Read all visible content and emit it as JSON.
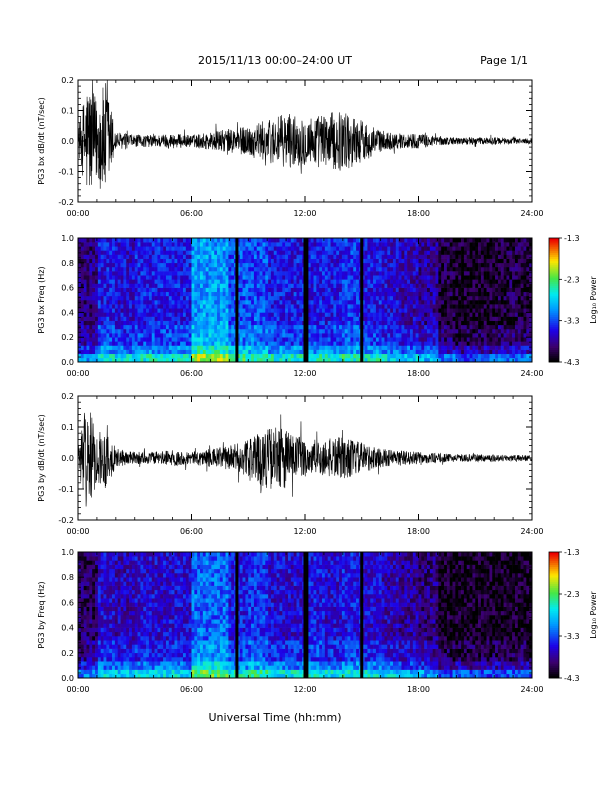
{
  "header": {
    "title": "2015/11/13  00:00–24:00 UT",
    "page": "Page 1/1"
  },
  "footer": {
    "xlabel": "Universal Time (hh:mm)"
  },
  "colorbar": {
    "label": "Log₁₀ Power",
    "ticks": [
      "-1.3",
      "-2.3",
      "-3.3",
      "-4.3"
    ]
  },
  "chart_data": [
    {
      "type": "line",
      "ylabel": "PG3 bx dB/dt (nT/sec)",
      "xlim": [
        0,
        24
      ],
      "ylim": [
        -0.2,
        0.2
      ],
      "x_ticks": [
        "00:00",
        "06:00",
        "12:00",
        "18:00",
        "24:00"
      ],
      "y_ticks": [
        "-0.2",
        "-0.1",
        "0.0",
        "0.1",
        "0.2"
      ],
      "envelope_hours": [
        0,
        0.5,
        1,
        1.5,
        2,
        3,
        4,
        5,
        6,
        7,
        8,
        9,
        10,
        11,
        12,
        13,
        14,
        15,
        16,
        17,
        18,
        19,
        20,
        21,
        22,
        23,
        24
      ],
      "envelope_amplitude": [
        0.04,
        0.2,
        0.14,
        0.2,
        0.03,
        0.02,
        0.02,
        0.025,
        0.02,
        0.03,
        0.04,
        0.05,
        0.07,
        0.09,
        0.08,
        0.09,
        0.1,
        0.07,
        0.035,
        0.025,
        0.025,
        0.015,
        0.012,
        0.012,
        0.012,
        0.01,
        0.01
      ]
    },
    {
      "type": "heatmap",
      "ylabel": "PG3 bx Freq (Hz)",
      "xlim": [
        0,
        24
      ],
      "ylim": [
        0,
        1.0
      ],
      "zlim": [
        -4.3,
        -1.3
      ],
      "x_ticks": [
        "00:00",
        "06:00",
        "12:00",
        "18:00",
        "24:00"
      ],
      "y_ticks": [
        "0.0",
        "0.2",
        "0.4",
        "0.6",
        "0.8",
        "1.0"
      ],
      "data_gaps_hours": [
        8.4,
        12.0,
        12.1,
        15.0
      ],
      "hour_bins": [
        0,
        1,
        2,
        3,
        4,
        5,
        6,
        7,
        8,
        9,
        10,
        11,
        12,
        13,
        14,
        15,
        16,
        17,
        18,
        19,
        20,
        21,
        22,
        23
      ],
      "background_log_power": [
        -3.9,
        -3.5,
        -3.6,
        -3.5,
        -3.5,
        -3.5,
        -3.0,
        -3.0,
        -3.3,
        -3.3,
        -3.5,
        -3.5,
        -3.5,
        -3.5,
        -3.4,
        -3.5,
        -3.6,
        -3.7,
        -3.8,
        -4.1,
        -4.2,
        -4.2,
        -4.1,
        -4.1
      ]
    },
    {
      "type": "line",
      "ylabel": "PG3 by dB/dt (nT/sec)",
      "xlim": [
        0,
        24
      ],
      "ylim": [
        -0.2,
        0.2
      ],
      "x_ticks": [
        "00:00",
        "06:00",
        "12:00",
        "18:00",
        "24:00"
      ],
      "y_ticks": [
        "-0.2",
        "-0.1",
        "0.0",
        "0.1",
        "0.2"
      ],
      "envelope_hours": [
        0,
        0.5,
        1,
        1.5,
        2,
        3,
        4,
        5,
        6,
        7,
        8,
        9,
        10,
        11,
        12,
        13,
        14,
        15,
        16,
        17,
        18,
        19,
        20,
        21,
        22,
        23,
        24
      ],
      "envelope_amplitude": [
        0.04,
        0.18,
        0.08,
        0.1,
        0.03,
        0.02,
        0.02,
        0.025,
        0.02,
        0.03,
        0.04,
        0.06,
        0.1,
        0.1,
        0.06,
        0.06,
        0.07,
        0.05,
        0.03,
        0.025,
        0.02,
        0.015,
        0.012,
        0.012,
        0.012,
        0.01,
        0.01
      ]
    },
    {
      "type": "heatmap",
      "ylabel": "PG3 by Freq (Hz)",
      "xlim": [
        0,
        24
      ],
      "ylim": [
        0,
        1.0
      ],
      "zlim": [
        -4.3,
        -1.3
      ],
      "x_ticks": [
        "00:00",
        "06:00",
        "12:00",
        "18:00",
        "24:00"
      ],
      "y_ticks": [
        "0.0",
        "0.2",
        "0.4",
        "0.6",
        "0.8",
        "1.0"
      ],
      "data_gaps_hours": [
        8.4,
        12.0,
        12.1,
        15.0
      ],
      "hour_bins": [
        0,
        1,
        2,
        3,
        4,
        5,
        6,
        7,
        8,
        9,
        10,
        11,
        12,
        13,
        14,
        15,
        16,
        17,
        18,
        19,
        20,
        21,
        22,
        23
      ],
      "background_log_power": [
        -4.0,
        -3.6,
        -3.7,
        -3.6,
        -3.6,
        -3.6,
        -3.2,
        -3.2,
        -3.5,
        -3.4,
        -3.6,
        -3.6,
        -3.5,
        -3.6,
        -3.5,
        -3.6,
        -3.7,
        -3.8,
        -3.9,
        -4.2,
        -4.2,
        -4.2,
        -4.2,
        -4.2
      ]
    }
  ]
}
